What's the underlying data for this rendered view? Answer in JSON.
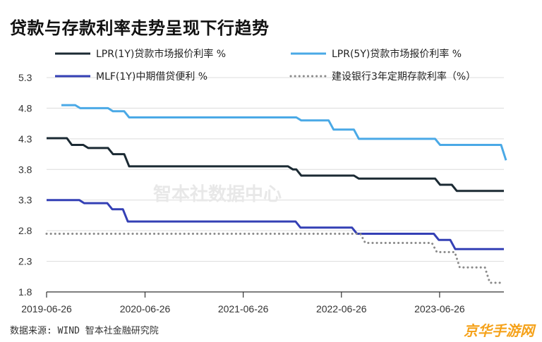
{
  "page": {
    "title": "贷款与存款利率走势呈现下行趋势",
    "source": "数据来源: WIND 智本社金融研究院",
    "watermark": "智本社数据中心",
    "corner_logo": "京华手游网"
  },
  "chart_data": {
    "type": "line",
    "title": "贷款与存款利率走势呈现下行趋势",
    "xlabel": "",
    "ylabel": "",
    "x_ticks": [
      "2019-06-26",
      "2020-06-26",
      "2021-06-26",
      "2022-06-26",
      "2023-06-26"
    ],
    "y_ticks": [
      1.8,
      2.3,
      2.8,
      3.3,
      3.8,
      4.3,
      4.8,
      5.3
    ],
    "ylim": [
      1.8,
      5.3
    ],
    "xlim": [
      "2019-06-26",
      "2024-02-20"
    ],
    "grid": "horizontal",
    "legend_position": "top",
    "series": [
      {
        "name": "LPR(1Y)贷款市场报价利率 %",
        "color": "#1b2a33",
        "style": "solid",
        "points": [
          [
            "2019-06-26",
            4.31
          ],
          [
            "2019-08-20",
            4.31
          ],
          [
            "2019-09-20",
            4.2
          ],
          [
            "2019-11-20",
            4.15
          ],
          [
            "2020-02-20",
            4.05
          ],
          [
            "2020-04-20",
            3.85
          ],
          [
            "2021-12-20",
            3.8
          ],
          [
            "2022-01-20",
            3.7
          ],
          [
            "2022-08-22",
            3.65
          ],
          [
            "2023-06-20",
            3.55
          ],
          [
            "2023-08-21",
            3.45
          ],
          [
            "2024-02-20",
            3.45
          ]
        ]
      },
      {
        "name": "LPR(5Y)贷款市场报价利率 %",
        "color": "#4aa9e6",
        "style": "solid",
        "points": [
          [
            "2019-08-20",
            4.85
          ],
          [
            "2019-10-21",
            4.8
          ],
          [
            "2020-02-20",
            4.75
          ],
          [
            "2020-04-20",
            4.65
          ],
          [
            "2022-01-20",
            4.6
          ],
          [
            "2022-05-20",
            4.45
          ],
          [
            "2022-08-22",
            4.3
          ],
          [
            "2023-06-20",
            4.2
          ],
          [
            "2024-02-20",
            3.95
          ]
        ]
      },
      {
        "name": "MLF(1Y)中期借贷便利 %",
        "color": "#3440b5",
        "style": "solid",
        "points": [
          [
            "2019-06-26",
            3.3
          ],
          [
            "2019-11-05",
            3.25
          ],
          [
            "2020-02-17",
            3.15
          ],
          [
            "2020-04-15",
            2.95
          ],
          [
            "2022-01-17",
            2.85
          ],
          [
            "2022-08-15",
            2.75
          ],
          [
            "2023-06-15",
            2.65
          ],
          [
            "2023-08-15",
            2.5
          ],
          [
            "2024-02-20",
            2.5
          ]
        ]
      },
      {
        "name": "建设银行3年定期存款利率（%）",
        "color": "#8a8a8a",
        "style": "dotted",
        "points": [
          [
            "2019-06-26",
            2.75
          ],
          [
            "2022-09-15",
            2.6
          ],
          [
            "2023-06-08",
            2.45
          ],
          [
            "2023-09-01",
            2.2
          ],
          [
            "2023-12-22",
            1.95
          ],
          [
            "2024-02-20",
            1.95
          ]
        ]
      }
    ]
  }
}
